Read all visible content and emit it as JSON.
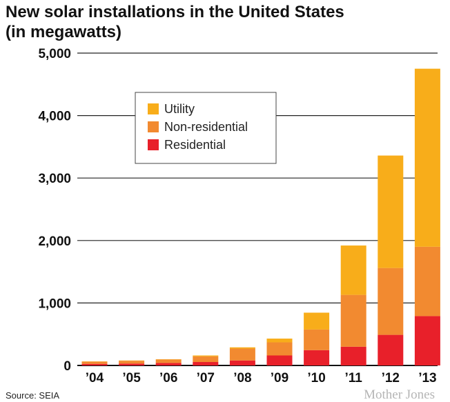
{
  "chart_data": {
    "type": "bar",
    "stacked": true,
    "title_lines": [
      "New solar installations in the United States",
      "(in megawatts)"
    ],
    "categories": [
      "’04",
      "’05",
      "’06",
      "’07",
      "’08",
      "’09",
      "’10",
      "’11",
      "’12",
      "’13"
    ],
    "series": [
      {
        "name": "Residential",
        "color": "#e8202a",
        "values": [
          25,
          30,
          40,
          55,
          80,
          160,
          245,
          300,
          490,
          790
        ]
      },
      {
        "name": "Non-residential",
        "color": "#f28a30",
        "values": [
          35,
          45,
          55,
          90,
          190,
          210,
          330,
          830,
          1070,
          1110
        ]
      },
      {
        "name": "Utility",
        "color": "#f8ad1a",
        "values": [
          5,
          5,
          5,
          15,
          20,
          60,
          270,
          790,
          1800,
          2850
        ]
      }
    ],
    "ylim": [
      0,
      5000
    ],
    "yticks": [
      0,
      1000,
      2000,
      3000,
      4000,
      5000
    ],
    "ytick_labels": [
      "0",
      "1,000",
      "2,000",
      "3,000",
      "4,000",
      "5,000"
    ],
    "grid": true,
    "legend": {
      "placement": "upper-left",
      "entries": [
        "Utility",
        "Non-residential",
        "Residential"
      ]
    },
    "source": "Source: SEIA",
    "credit": "Mother Jones"
  }
}
